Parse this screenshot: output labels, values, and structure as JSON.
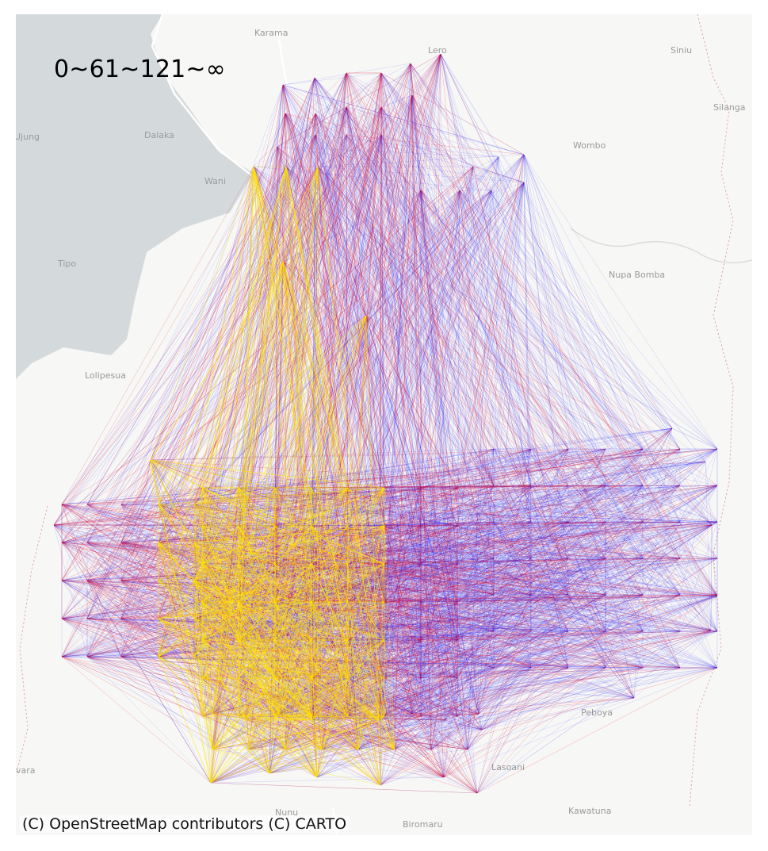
{
  "legend": {
    "title": "0~61~121~∞",
    "bins": [
      {
        "range": "0~61",
        "color": "#ffe600"
      },
      {
        "range": "61~121",
        "color": "#e8001c"
      },
      {
        "range": "121~∞",
        "color": "#0000ff"
      }
    ]
  },
  "attribution": "(C) OpenStreetMap contributors (C) CARTO",
  "places": [
    "Karama",
    "Lero",
    "Siniu",
    "Silanga",
    "Ujung",
    "Dalaka",
    "Wani",
    "Wombo",
    "Nupa Bomba",
    "Tipo",
    "Lolipesua",
    "Peboya",
    "Nunu",
    "Biromaru",
    "Kawatuna",
    "vara",
    "Lasoani"
  ],
  "colors": {
    "sea": "#d4dadc",
    "land": "#f7f7f5",
    "road": "#ffffff",
    "boundary": "#d9a3a3"
  }
}
